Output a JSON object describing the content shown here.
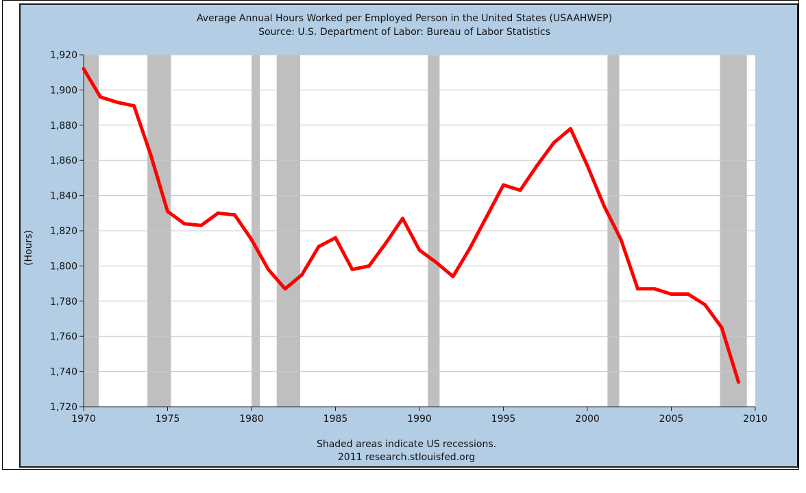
{
  "chart_data": {
    "type": "line",
    "title": "Average Annual Hours Worked per Employed Person in the United States (USAAHWEP)",
    "subtitle": "Source: U.S. Department of Labor: Bureau of Labor Statistics",
    "xlabel": "",
    "ylabel": "(Hours)",
    "xlim": [
      1970,
      2010
    ],
    "ylim": [
      1720,
      1920
    ],
    "x_ticks": [
      1970,
      1975,
      1980,
      1985,
      1990,
      1995,
      2000,
      2005,
      2010
    ],
    "y_ticks": [
      1720,
      1740,
      1760,
      1780,
      1800,
      1820,
      1840,
      1860,
      1880,
      1900,
      1920
    ],
    "grid": true,
    "footnote": "Shaded areas indicate US recessions.",
    "credit": "2011 research.stlouisfed.org",
    "colors": {
      "series": "#ff0000",
      "recession": "#bfbfbf",
      "panel": "#b3cde4",
      "plot_bg": "#ffffff",
      "grid": "#c8c8c8"
    },
    "recessions": [
      [
        1970.0,
        1970.9
      ],
      [
        1973.8,
        1975.2
      ],
      [
        1980.0,
        1980.5
      ],
      [
        1981.5,
        1982.9
      ],
      [
        1990.5,
        1991.2
      ],
      [
        2001.2,
        2001.9
      ],
      [
        2007.9,
        2009.5
      ]
    ],
    "series": [
      {
        "x": [
          1970,
          1971,
          1972,
          1973,
          1974,
          1975,
          1976,
          1977,
          1978,
          1979,
          1980,
          1981,
          1982,
          1983,
          1984,
          1985,
          1986,
          1987,
          1988,
          1989,
          1990,
          1991,
          1992,
          1993,
          1994,
          1995,
          1996,
          1997,
          1998,
          1999,
          2000,
          2001,
          2002,
          2003,
          2004,
          2005,
          2006,
          2007,
          2008,
          2009
        ],
        "values": [
          1912,
          1896,
          1893,
          1891,
          1863,
          1831,
          1824,
          1823,
          1830,
          1829,
          1815,
          1798,
          1787,
          1795,
          1811,
          1816,
          1798,
          1800,
          1813,
          1827,
          1809,
          1802,
          1794,
          1810,
          1828,
          1846,
          1843,
          1857,
          1870,
          1878,
          1857,
          1834,
          1815,
          1787,
          1787,
          1784,
          1784,
          1778,
          1765,
          1734
        ]
      }
    ]
  }
}
